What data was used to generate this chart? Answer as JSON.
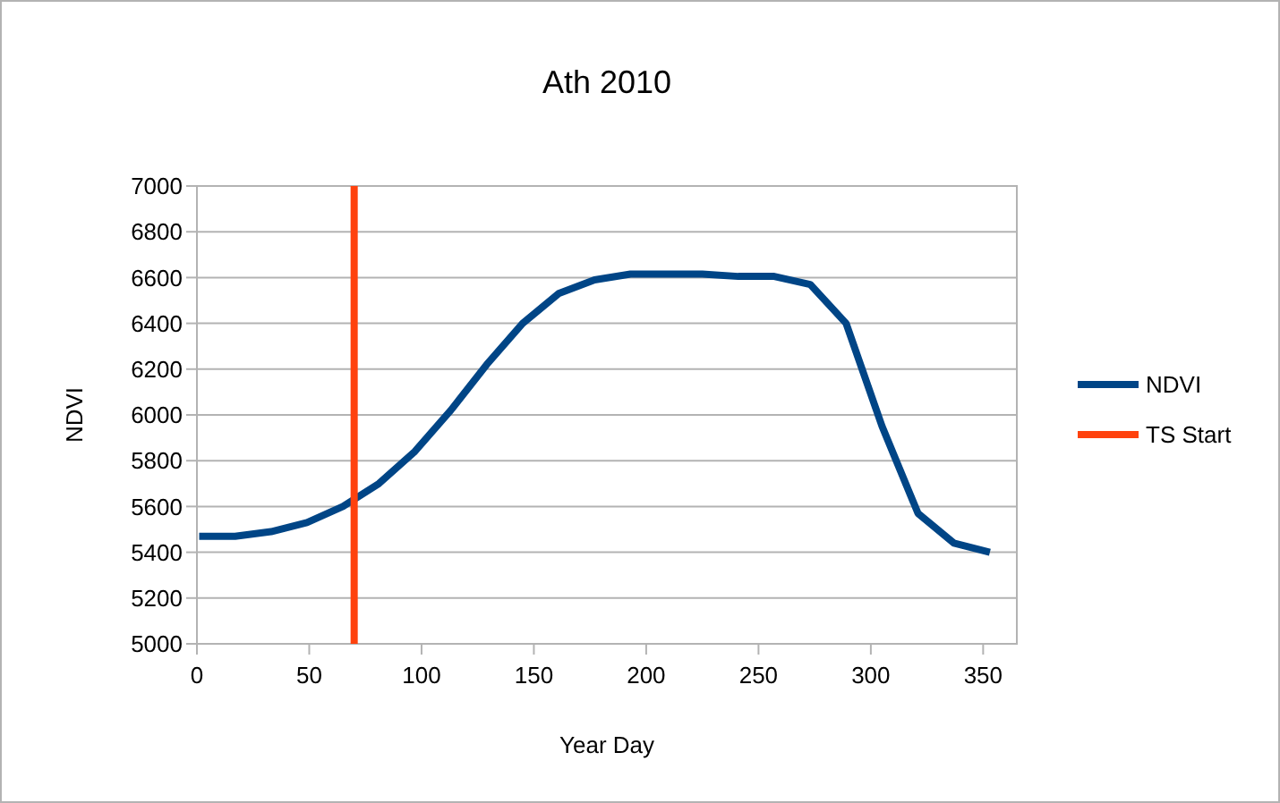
{
  "chart_data": {
    "type": "line",
    "title": "Ath 2010",
    "xlabel": "Year Day",
    "ylabel": "NDVI",
    "xlim": [
      0,
      365
    ],
    "xticks": [
      0,
      50,
      100,
      150,
      200,
      250,
      300,
      350
    ],
    "ylim": [
      5000,
      7000
    ],
    "yticks": [
      5000,
      5200,
      5400,
      5600,
      5800,
      6000,
      6200,
      6400,
      6600,
      6800,
      7000
    ],
    "grid": "y",
    "legend": "right",
    "marker": "none",
    "line_style": "solid",
    "series": [
      {
        "name": "NDVI",
        "color": "#004586",
        "x": [
          1,
          17,
          33,
          49,
          65,
          81,
          97,
          113,
          129,
          145,
          161,
          177,
          193,
          209,
          225,
          241,
          257,
          273,
          289,
          305,
          321,
          337,
          353
        ],
        "values": [
          5470,
          5470,
          5490,
          5530,
          5600,
          5700,
          5840,
          6020,
          6220,
          6400,
          6530,
          6590,
          6615,
          6615,
          6615,
          6605,
          6605,
          6570,
          6400,
          5950,
          5570,
          5440,
          5400
        ]
      },
      {
        "name": "TS Start",
        "color": "#ff420e",
        "x": [
          70,
          70
        ],
        "values": [
          5000,
          7000
        ]
      }
    ]
  }
}
